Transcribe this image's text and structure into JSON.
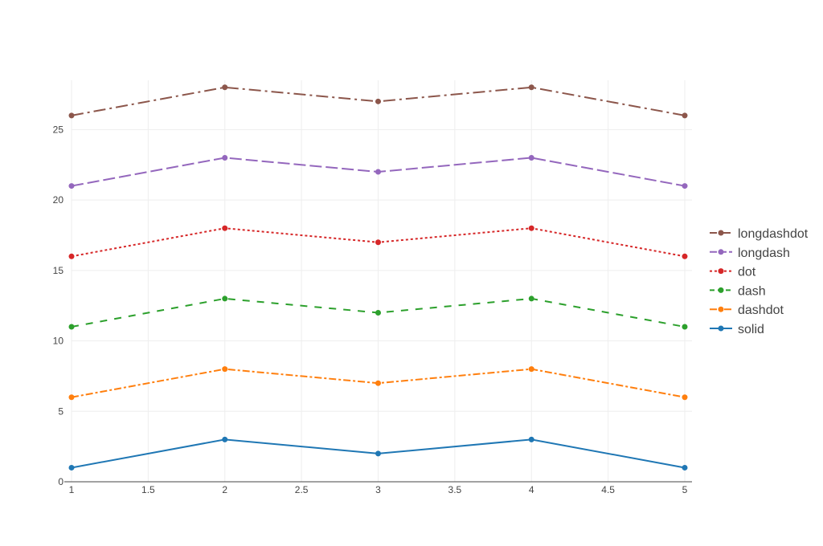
{
  "chart_data": {
    "type": "line",
    "title": "",
    "xlabel": "",
    "ylabel": "",
    "xlim": [
      1,
      5
    ],
    "ylim": [
      0,
      28.5
    ],
    "grid": true,
    "legend_position": "right",
    "x": [
      1,
      2,
      3,
      4,
      5
    ],
    "x_ticks": [
      "1",
      "1.5",
      "2",
      "2.5",
      "3",
      "3.5",
      "4",
      "4.5",
      "5"
    ],
    "y_ticks": [
      "0",
      "5",
      "10",
      "15",
      "20",
      "25"
    ],
    "series": [
      {
        "name": "solid",
        "values": [
          1,
          3,
          2,
          3,
          1
        ],
        "color": "#1f77b4",
        "dash": "solid"
      },
      {
        "name": "dashdot",
        "values": [
          6,
          8,
          7,
          8,
          6
        ],
        "color": "#ff7f0e",
        "dash": "dashdot"
      },
      {
        "name": "dash",
        "values": [
          11,
          13,
          12,
          13,
          11
        ],
        "color": "#2ca02c",
        "dash": "dash"
      },
      {
        "name": "dot",
        "values": [
          16,
          18,
          17,
          18,
          16
        ],
        "color": "#d62728",
        "dash": "dot"
      },
      {
        "name": "longdash",
        "values": [
          21,
          23,
          22,
          23,
          21
        ],
        "color": "#9467bd",
        "dash": "longdash"
      },
      {
        "name": "longdashdot",
        "values": [
          26,
          28,
          27,
          28,
          26
        ],
        "color": "#8c564b",
        "dash": "longdashdot"
      }
    ]
  }
}
